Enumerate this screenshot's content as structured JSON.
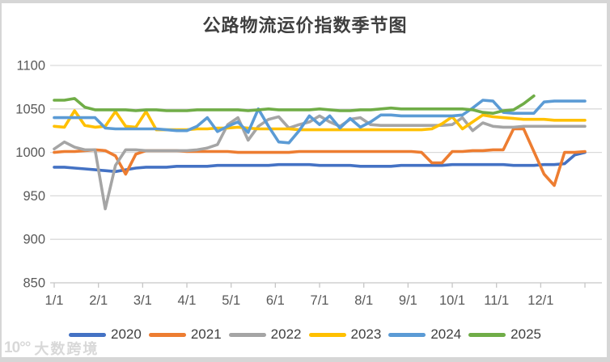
{
  "watermark": {
    "logo": "10°°",
    "text": "大数跨境"
  },
  "chart_data": {
    "type": "line",
    "title": "公路物流运价指数季节图",
    "xlabel": "",
    "ylabel": "",
    "x_unit": "date (month/day), weekly points per year",
    "x_tick_labels": [
      "1/1",
      "2/1",
      "3/1",
      "4/1",
      "5/1",
      "6/1",
      "7/1",
      "8/1",
      "9/1",
      "10/1",
      "11/1",
      "12/1"
    ],
    "y_ticks": [
      850,
      900,
      950,
      1000,
      1050,
      1100
    ],
    "ylim": [
      850,
      1100
    ],
    "grid": "horizontal",
    "legend_position": "bottom",
    "gridline_color": "#d9d9d9",
    "axis_text_color": "#595959",
    "series": [
      {
        "name": "2020",
        "color": "#4472C4",
        "values": [
          983,
          983,
          982,
          981,
          980,
          979,
          978,
          980,
          982,
          983,
          983,
          983,
          984,
          984,
          984,
          984,
          985,
          985,
          985,
          985,
          985,
          985,
          986,
          986,
          986,
          986,
          985,
          985,
          985,
          985,
          984,
          984,
          984,
          984,
          985,
          985,
          985,
          985,
          985,
          986,
          986,
          986,
          986,
          986,
          986,
          985,
          985,
          985,
          986,
          986,
          987,
          997,
          1000
        ]
      },
      {
        "name": "2021",
        "color": "#ED7D31",
        "values": [
          1000,
          1001,
          1001,
          1002,
          1003,
          1002,
          996,
          975,
          998,
          1002,
          1002,
          1002,
          1002,
          1001,
          1001,
          1001,
          1001,
          1001,
          1000,
          1000,
          1000,
          1000,
          1000,
          1000,
          1001,
          1001,
          1001,
          1001,
          1001,
          1001,
          1001,
          1001,
          1001,
          1001,
          1001,
          1001,
          1000,
          988,
          988,
          1001,
          1001,
          1002,
          1002,
          1003,
          1003,
          1027,
          1027,
          1001,
          975,
          962,
          1000,
          1000,
          1001
        ]
      },
      {
        "name": "2022",
        "color": "#A5A5A5",
        "values": [
          1004,
          1012,
          1006,
          1003,
          1003,
          935,
          985,
          1003,
          1003,
          1002,
          1002,
          1002,
          1002,
          1002,
          1003,
          1005,
          1009,
          1032,
          1040,
          1014,
          1030,
          1038,
          1041,
          1028,
          1032,
          1035,
          1042,
          1035,
          1030,
          1038,
          1040,
          1032,
          1031,
          1031,
          1031,
          1031,
          1031,
          1031,
          1031,
          1032,
          1040,
          1025,
          1034,
          1030,
          1029,
          1029,
          1030,
          1030,
          1030,
          1030,
          1030,
          1030,
          1030
        ]
      },
      {
        "name": "2023",
        "color": "#FFC000",
        "values": [
          1030,
          1029,
          1048,
          1031,
          1029,
          1030,
          1047,
          1030,
          1029,
          1047,
          1026,
          1026,
          1026,
          1026,
          1027,
          1027,
          1028,
          1028,
          1029,
          1028,
          1027,
          1027,
          1027,
          1027,
          1026,
          1026,
          1026,
          1026,
          1026,
          1026,
          1026,
          1026,
          1026,
          1026,
          1026,
          1026,
          1026,
          1027,
          1033,
          1041,
          1027,
          1035,
          1043,
          1041,
          1040,
          1039,
          1038,
          1038,
          1038,
          1037,
          1037,
          1037,
          1037
        ]
      },
      {
        "name": "2024",
        "color": "#5B9BD5",
        "values": [
          1040,
          1040,
          1040,
          1040,
          1040,
          1028,
          1027,
          1027,
          1027,
          1027,
          1027,
          1026,
          1025,
          1025,
          1030,
          1040,
          1024,
          1030,
          1035,
          1023,
          1050,
          1030,
          1012,
          1011,
          1025,
          1042,
          1032,
          1042,
          1028,
          1039,
          1029,
          1035,
          1043,
          1043,
          1042,
          1042,
          1042,
          1042,
          1042,
          1042,
          1043,
          1051,
          1060,
          1059,
          1046,
          1045,
          1045,
          1045,
          1058,
          1059,
          1059,
          1059,
          1059
        ]
      },
      {
        "name": "2025",
        "color": "#70AD47",
        "values": [
          1060,
          1060,
          1062,
          1052,
          1049,
          1049,
          1049,
          1049,
          1048,
          1049,
          1049,
          1048,
          1048,
          1048,
          1049,
          1049,
          1049,
          1049,
          1049,
          1048,
          1049,
          1050,
          1049,
          1049,
          1049,
          1049,
          1050,
          1049,
          1048,
          1048,
          1049,
          1049,
          1050,
          1051,
          1050,
          1050,
          1050,
          1050,
          1050,
          1050,
          1050,
          1049,
          1046,
          1045,
          1048,
          1049,
          1056,
          1065
        ]
      }
    ]
  }
}
